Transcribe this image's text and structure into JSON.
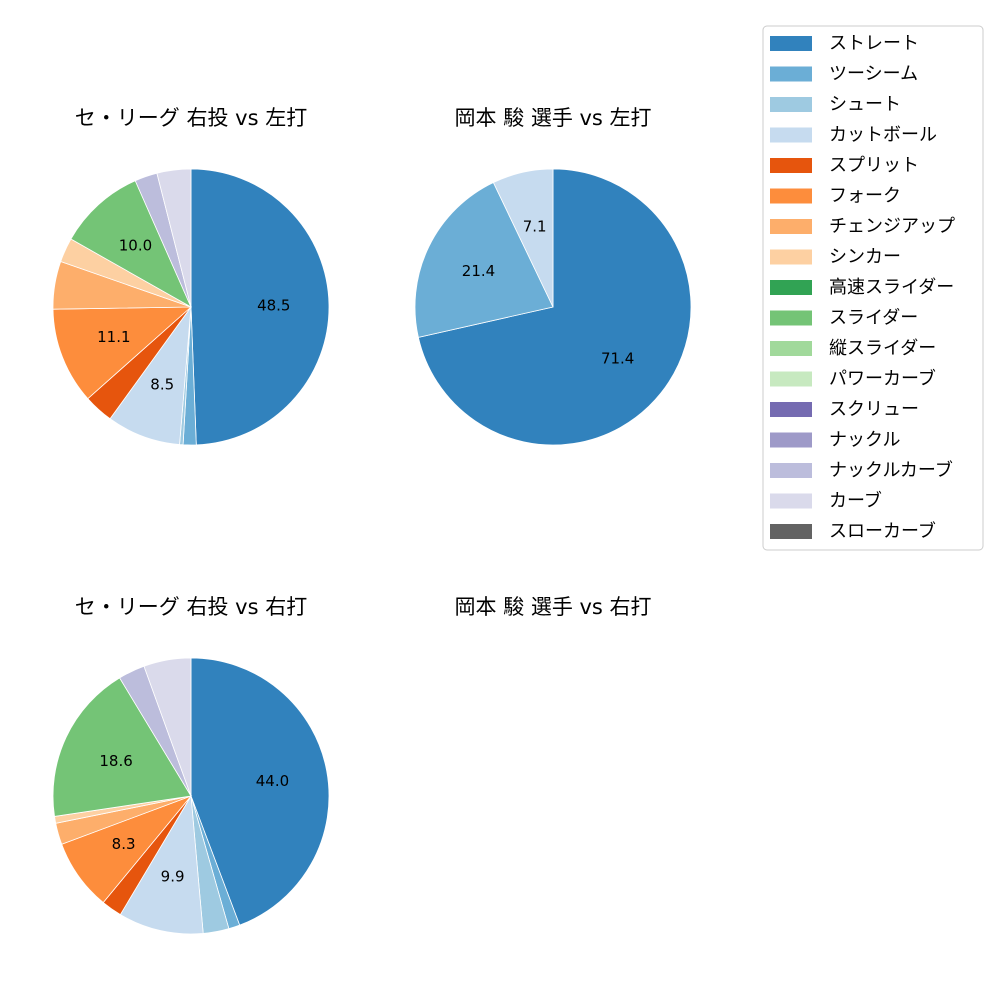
{
  "colors": {
    "ストレート": "#3182bd",
    "ツーシーム": "#6baed6",
    "シュート": "#9ecae1",
    "カットボール": "#c6dbef",
    "スプリット": "#e6550d",
    "フォーク": "#fd8d3c",
    "チェンジアップ": "#fdae6b",
    "シンカー": "#fdd0a2",
    "高速スライダー": "#31a354",
    "スライダー": "#74c476",
    "縦スライダー": "#a1d99b",
    "パワーカーブ": "#c7e9c0",
    "スクリュー": "#756bb1",
    "ナックル": "#9e9ac8",
    "ナックルカーブ": "#bcbddc",
    "カーブ": "#dadaeb",
    "スローカーブ": "#636363"
  },
  "chart_data": [
    {
      "type": "pie",
      "title": "セ・リーグ 右投 vs 左打",
      "slices": [
        {
          "label": "ストレート",
          "value": 48.5,
          "show_label": true
        },
        {
          "label": "ツーシーム",
          "value": 1.5
        },
        {
          "label": "シュート",
          "value": 0.4
        },
        {
          "label": "カットボール",
          "value": 8.5,
          "show_label": true
        },
        {
          "label": "スプリット",
          "value": 3.4
        },
        {
          "label": "フォーク",
          "value": 11.1,
          "show_label": true
        },
        {
          "label": "チェンジアップ",
          "value": 5.5
        },
        {
          "label": "シンカー",
          "value": 2.8
        },
        {
          "label": "スライダー",
          "value": 10.0,
          "show_label": true
        },
        {
          "label": "ナックルカーブ",
          "value": 2.6
        },
        {
          "label": "カーブ",
          "value": 3.9
        }
      ]
    },
    {
      "type": "pie",
      "title": "岡本 駿 選手 vs 左打",
      "slices": [
        {
          "label": "ストレート",
          "value": 71.4,
          "show_label": true
        },
        {
          "label": "ツーシーム",
          "value": 21.4,
          "show_label": true
        },
        {
          "label": "カットボール",
          "value": 7.1,
          "show_label": true
        }
      ]
    },
    {
      "type": "pie",
      "title": "セ・リーグ 右投 vs 右打",
      "slices": [
        {
          "label": "ストレート",
          "value": 44.0,
          "show_label": true
        },
        {
          "label": "ツーシーム",
          "value": 1.3
        },
        {
          "label": "シュート",
          "value": 3.0
        },
        {
          "label": "カットボール",
          "value": 9.9,
          "show_label": true
        },
        {
          "label": "スプリット",
          "value": 2.4
        },
        {
          "label": "フォーク",
          "value": 8.3,
          "show_label": true
        },
        {
          "label": "チェンジアップ",
          "value": 2.5
        },
        {
          "label": "シンカー",
          "value": 0.8
        },
        {
          "label": "スライダー",
          "value": 18.6,
          "show_label": true
        },
        {
          "label": "ナックルカーブ",
          "value": 3.1
        },
        {
          "label": "カーブ",
          "value": 5.5
        }
      ]
    },
    {
      "type": "pie",
      "title": "岡本 駿 選手 vs 右打",
      "slices": []
    }
  ],
  "legend": {
    "items": [
      "ストレート",
      "ツーシーム",
      "シュート",
      "カットボール",
      "スプリット",
      "フォーク",
      "チェンジアップ",
      "シンカー",
      "高速スライダー",
      "スライダー",
      "縦スライダー",
      "パワーカーブ",
      "スクリュー",
      "ナックル",
      "ナックルカーブ",
      "カーブ",
      "スローカーブ"
    ]
  }
}
